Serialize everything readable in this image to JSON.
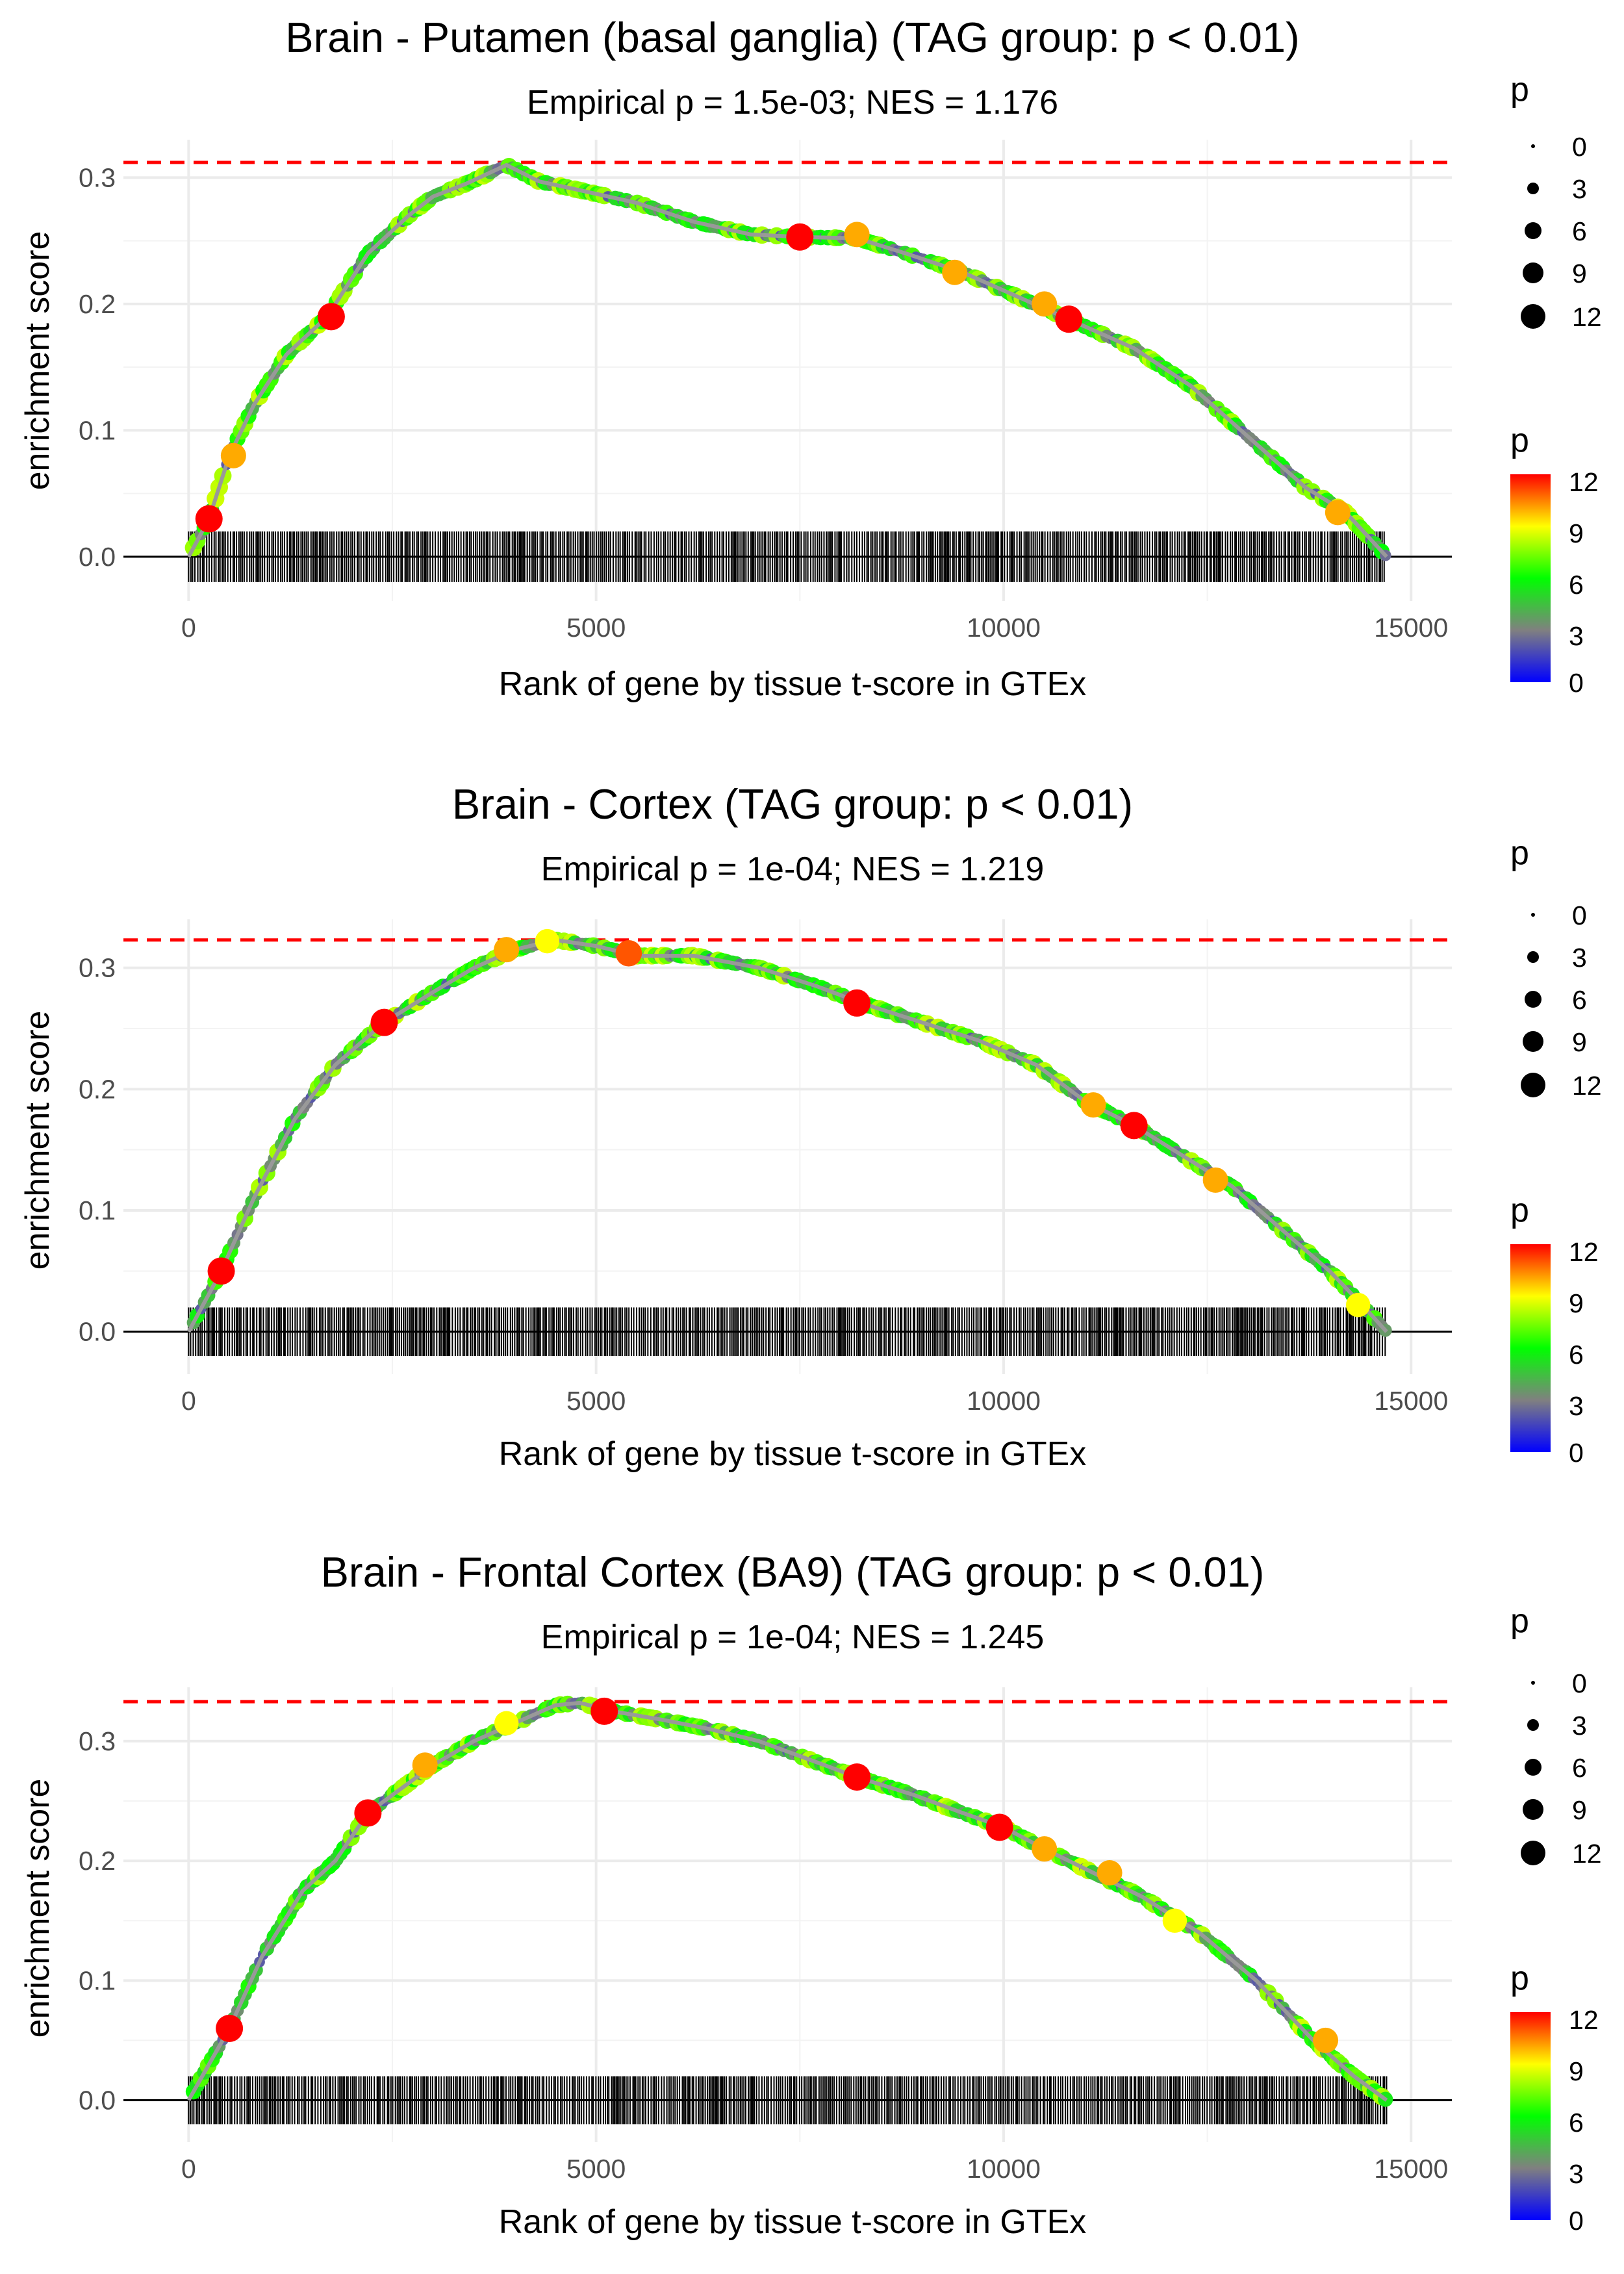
{
  "chart_data": [
    {
      "type": "line",
      "title": "Brain - Putamen (basal ganglia) (TAG group: p < 0.01)",
      "subtitle": "Empirical p = 1.5e-03; NES = 1.176",
      "xlabel": "Rank of gene by tissue t-score in GTEx",
      "ylabel": "enrichment score",
      "xlim": [
        -800,
        15500
      ],
      "ylim": [
        -0.035,
        0.33
      ],
      "xticks": [
        0,
        5000,
        10000,
        15000
      ],
      "xtick_labels": [
        "0",
        "5000",
        "10000",
        "15000"
      ],
      "yticks": [
        0.0,
        0.1,
        0.2,
        0.3
      ],
      "ytick_labels": [
        "0.0",
        "0.1",
        "0.2",
        "0.3"
      ],
      "max_es": 0.312,
      "gene_ranks_span": [
        0,
        14700
      ],
      "curve_x": [
        0,
        250,
        500,
        800,
        1200,
        1700,
        2200,
        2700,
        3000,
        3400,
        3900,
        4300,
        4800,
        5500,
        6200,
        6900,
        7500,
        8200,
        8800,
        9500,
        10200,
        10900,
        11600,
        12300,
        13000,
        13700,
        14200,
        14700
      ],
      "curve_y": [
        0.0,
        0.03,
        0.08,
        0.12,
        0.16,
        0.19,
        0.24,
        0.27,
        0.285,
        0.295,
        0.31,
        0.297,
        0.29,
        0.28,
        0.265,
        0.255,
        0.253,
        0.252,
        0.24,
        0.225,
        0.205,
        0.185,
        0.165,
        0.135,
        0.095,
        0.055,
        0.035,
        0.0
      ],
      "highlight_points": [
        {
          "x": 250,
          "y": 0.03,
          "p": 12
        },
        {
          "x": 550,
          "y": 0.08,
          "p": 10
        },
        {
          "x": 1750,
          "y": 0.19,
          "p": 12
        },
        {
          "x": 7500,
          "y": 0.253,
          "p": 12
        },
        {
          "x": 8200,
          "y": 0.255,
          "p": 10
        },
        {
          "x": 9400,
          "y": 0.225,
          "p": 10
        },
        {
          "x": 10500,
          "y": 0.2,
          "p": 10
        },
        {
          "x": 10800,
          "y": 0.188,
          "p": 12
        },
        {
          "x": 14100,
          "y": 0.035,
          "p": 10
        }
      ]
    },
    {
      "type": "line",
      "title": "Brain - Cortex (TAG group: p < 0.01)",
      "subtitle": "Empirical p = 1e-04; NES = 1.219",
      "xlabel": "Rank of gene by tissue t-score in GTEx",
      "ylabel": "enrichment score",
      "xlim": [
        -800,
        15500
      ],
      "ylim": [
        -0.035,
        0.34
      ],
      "xticks": [
        0,
        5000,
        10000,
        15000
      ],
      "xtick_labels": [
        "0",
        "5000",
        "10000",
        "15000"
      ],
      "yticks": [
        0.0,
        0.1,
        0.2,
        0.3
      ],
      "ytick_labels": [
        "0.0",
        "0.1",
        "0.2",
        "0.3"
      ],
      "max_es": 0.323,
      "gene_ranks_span": [
        0,
        14700
      ],
      "curve_x": [
        0,
        400,
        800,
        1300,
        1800,
        2400,
        3000,
        3500,
        4000,
        4500,
        5000,
        5500,
        6200,
        7000,
        7700,
        8300,
        9000,
        9700,
        10400,
        11000,
        11600,
        12200,
        12800,
        13400,
        14000,
        14400,
        14700
      ],
      "curve_y": [
        0.0,
        0.05,
        0.11,
        0.175,
        0.22,
        0.255,
        0.28,
        0.3,
        0.315,
        0.323,
        0.318,
        0.31,
        0.31,
        0.3,
        0.285,
        0.27,
        0.255,
        0.24,
        0.22,
        0.19,
        0.17,
        0.145,
        0.12,
        0.085,
        0.05,
        0.022,
        0.0
      ],
      "highlight_points": [
        {
          "x": 400,
          "y": 0.05,
          "p": 12
        },
        {
          "x": 2400,
          "y": 0.255,
          "p": 12
        },
        {
          "x": 3900,
          "y": 0.315,
          "p": 10
        },
        {
          "x": 4400,
          "y": 0.322,
          "p": 9
        },
        {
          "x": 5400,
          "y": 0.312,
          "p": 11
        },
        {
          "x": 8200,
          "y": 0.271,
          "p": 12
        },
        {
          "x": 11100,
          "y": 0.187,
          "p": 10
        },
        {
          "x": 11600,
          "y": 0.17,
          "p": 12
        },
        {
          "x": 12600,
          "y": 0.125,
          "p": 10
        },
        {
          "x": 14350,
          "y": 0.022,
          "p": 9
        }
      ]
    },
    {
      "type": "line",
      "title": "Brain - Frontal Cortex (BA9) (TAG group: p < 0.01)",
      "subtitle": "Empirical p = 1e-04; NES = 1.245",
      "xlabel": "Rank of gene by tissue t-score in GTEx",
      "ylabel": "enrichment score",
      "xlim": [
        -800,
        15500
      ],
      "ylim": [
        -0.035,
        0.345
      ],
      "xticks": [
        0,
        5000,
        10000,
        15000
      ],
      "xtick_labels": [
        "0",
        "5000",
        "10000",
        "15000"
      ],
      "yticks": [
        0.0,
        0.1,
        0.2,
        0.3
      ],
      "ytick_labels": [
        "0.0",
        "0.1",
        "0.2",
        "0.3"
      ],
      "max_es": 0.333,
      "gene_ranks_span": [
        0,
        14700
      ],
      "curve_x": [
        0,
        500,
        900,
        1400,
        1800,
        2200,
        2600,
        3000,
        3500,
        4000,
        4500,
        4800,
        5200,
        5800,
        6400,
        7000,
        7600,
        8200,
        8900,
        9500,
        10000,
        10500,
        11100,
        11700,
        12400,
        13100,
        13800,
        14300,
        14700
      ],
      "curve_y": [
        0.0,
        0.06,
        0.12,
        0.175,
        0.2,
        0.24,
        0.26,
        0.28,
        0.3,
        0.315,
        0.33,
        0.332,
        0.325,
        0.318,
        0.31,
        0.3,
        0.285,
        0.27,
        0.255,
        0.24,
        0.228,
        0.21,
        0.19,
        0.17,
        0.14,
        0.1,
        0.05,
        0.02,
        0.0
      ],
      "highlight_points": [
        {
          "x": 500,
          "y": 0.06,
          "p": 12
        },
        {
          "x": 2200,
          "y": 0.24,
          "p": 12
        },
        {
          "x": 2900,
          "y": 0.28,
          "p": 10
        },
        {
          "x": 3900,
          "y": 0.315,
          "p": 9
        },
        {
          "x": 5100,
          "y": 0.325,
          "p": 12
        },
        {
          "x": 8200,
          "y": 0.27,
          "p": 12
        },
        {
          "x": 9950,
          "y": 0.228,
          "p": 12
        },
        {
          "x": 10500,
          "y": 0.21,
          "p": 10
        },
        {
          "x": 11300,
          "y": 0.19,
          "p": 10
        },
        {
          "x": 12100,
          "y": 0.15,
          "p": 9
        },
        {
          "x": 13950,
          "y": 0.05,
          "p": 10
        }
      ]
    }
  ],
  "legend": {
    "size_title": "p",
    "size_values": [
      "0",
      "3",
      "6",
      "9",
      "12"
    ],
    "color_title": "p",
    "color_values": [
      "12",
      "9",
      "6",
      "3",
      "0"
    ],
    "color_stops": [
      "#ff0000",
      "#ffff00",
      "#00ff00",
      "#808080",
      "#0000ff"
    ]
  },
  "colors": {
    "max_line": "#ff0000",
    "curve": "#999999",
    "barcode": "#000000",
    "grid": "#ebebeb"
  }
}
